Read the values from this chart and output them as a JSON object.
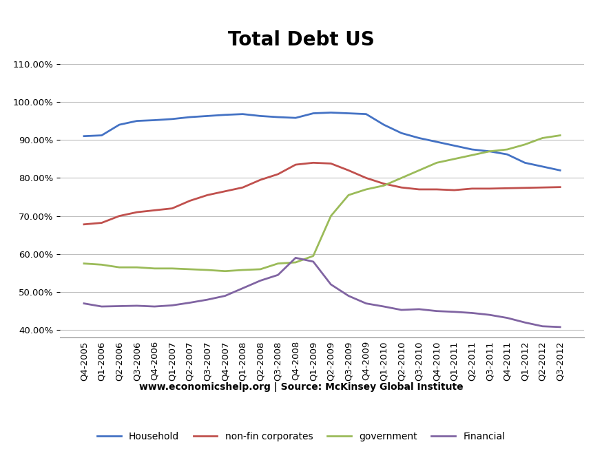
{
  "title": "Total Debt US",
  "subtitle": "www.economicshelp.org | Source: McKinsey Global Institute",
  "ylim": [
    0.38,
    1.12
  ],
  "yticks": [
    0.4,
    0.5,
    0.6,
    0.7,
    0.8,
    0.9,
    1.0,
    1.1
  ],
  "categories": [
    "Q4-2005",
    "Q1-2006",
    "Q2-2006",
    "Q3-2006",
    "Q4-2006",
    "Q1-2007",
    "Q2-2007",
    "Q3-2007",
    "Q4-2007",
    "Q1-2008",
    "Q2-2008",
    "Q3-2008",
    "Q4-2008",
    "Q1-2009",
    "Q2-2009",
    "Q3-2009",
    "Q4-2009",
    "Q1-2010",
    "Q2-2010",
    "Q3-2010",
    "Q4-2010",
    "Q1-2011",
    "Q2-2011",
    "Q3-2011",
    "Q4-2011",
    "Q1-2012",
    "Q2-2012",
    "Q3-2012"
  ],
  "series": {
    "Household": [
      0.91,
      0.912,
      0.94,
      0.95,
      0.952,
      0.955,
      0.96,
      0.963,
      0.966,
      0.968,
      0.963,
      0.96,
      0.958,
      0.97,
      0.972,
      0.97,
      0.968,
      0.94,
      0.918,
      0.905,
      0.895,
      0.885,
      0.875,
      0.87,
      0.862,
      0.84,
      0.83,
      0.82
    ],
    "non-fin corporates": [
      0.678,
      0.682,
      0.7,
      0.71,
      0.715,
      0.72,
      0.74,
      0.755,
      0.765,
      0.775,
      0.795,
      0.81,
      0.835,
      0.84,
      0.838,
      0.82,
      0.8,
      0.785,
      0.775,
      0.77,
      0.77,
      0.768,
      0.772,
      0.772,
      0.773,
      0.774,
      0.775,
      0.776
    ],
    "government": [
      0.575,
      0.572,
      0.565,
      0.565,
      0.562,
      0.562,
      0.56,
      0.558,
      0.555,
      0.558,
      0.56,
      0.575,
      0.578,
      0.595,
      0.7,
      0.755,
      0.77,
      0.78,
      0.8,
      0.82,
      0.84,
      0.85,
      0.86,
      0.87,
      0.875,
      0.888,
      0.905,
      0.912
    ],
    "Financial": [
      0.47,
      0.462,
      0.463,
      0.464,
      0.462,
      0.465,
      0.472,
      0.48,
      0.49,
      0.51,
      0.53,
      0.545,
      0.59,
      0.58,
      0.52,
      0.49,
      0.47,
      0.462,
      0.453,
      0.455,
      0.45,
      0.448,
      0.445,
      0.44,
      0.432,
      0.42,
      0.41,
      0.408
    ]
  },
  "colors": {
    "Household": "#4472C4",
    "non-fin corporates": "#C0504D",
    "government": "#9BBB59",
    "Financial": "#8064A2"
  },
  "legend_order": [
    "Household",
    "non-fin corporates",
    "government",
    "Financial"
  ],
  "background_color": "#FFFFFF",
  "grid_color": "#BEBEBE",
  "title_fontsize": 20,
  "tick_fontsize": 9.5,
  "legend_fontsize": 10,
  "subtitle_fontsize": 10
}
